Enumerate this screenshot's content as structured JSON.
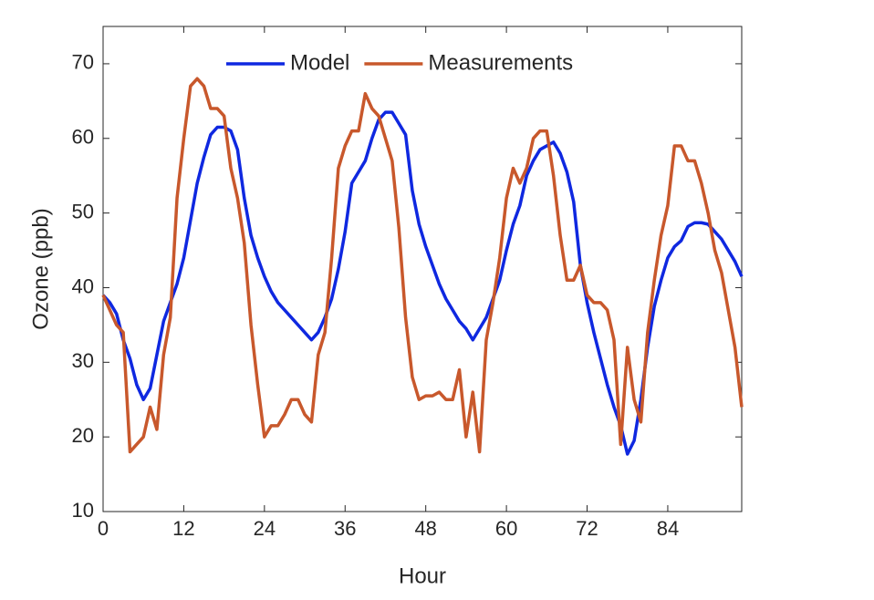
{
  "chart_data": {
    "type": "line",
    "xlabel": "Hour",
    "ylabel": "Ozone (ppb)",
    "x": [
      0,
      1,
      2,
      3,
      4,
      5,
      6,
      7,
      8,
      9,
      10,
      11,
      12,
      13,
      14,
      15,
      16,
      17,
      18,
      19,
      20,
      21,
      22,
      23,
      24,
      25,
      26,
      27,
      28,
      29,
      30,
      31,
      32,
      33,
      34,
      35,
      36,
      37,
      38,
      39,
      40,
      41,
      42,
      43,
      44,
      45,
      46,
      47,
      48,
      49,
      50,
      51,
      52,
      53,
      54,
      55,
      56,
      57,
      58,
      59,
      60,
      61,
      62,
      63,
      64,
      65,
      66,
      67,
      68,
      69,
      70,
      71,
      72,
      73,
      74,
      75,
      76,
      77,
      78,
      79,
      80,
      81,
      82,
      83,
      84,
      85,
      86,
      87,
      88,
      89,
      90,
      91,
      92,
      93,
      94,
      95
    ],
    "series": [
      {
        "name": "Model",
        "color": "#0f28e0",
        "values": [
          39,
          38,
          36.5,
          33,
          30.5,
          27,
          25,
          26.5,
          31,
          35.5,
          38,
          40.5,
          44,
          49,
          54,
          57.5,
          60.5,
          61.5,
          61.5,
          61,
          58.5,
          52,
          47,
          44,
          41.5,
          39.5,
          38,
          37,
          36,
          35,
          34,
          33,
          34,
          36,
          38.5,
          42.5,
          47.5,
          54,
          55.5,
          57,
          60,
          62.5,
          63.5,
          63.5,
          62,
          60.5,
          53,
          48.5,
          45.5,
          43,
          40.5,
          38.5,
          37,
          35.5,
          34.5,
          33,
          34.5,
          36,
          38.5,
          41,
          45,
          48.5,
          51,
          55,
          57,
          58.5,
          59,
          59.5,
          58,
          55.5,
          51.5,
          43,
          38,
          34,
          30.5,
          27,
          24,
          21.5,
          17.7,
          19.5,
          25,
          32,
          37.5,
          41,
          44,
          45.5,
          46.3,
          48.2,
          48.7,
          48.7,
          48.5,
          47.5,
          46.5,
          45,
          43.5,
          41.5
        ]
      },
      {
        "name": "Measurements",
        "color": "#c8582c",
        "values": [
          39,
          37,
          35,
          34,
          18,
          19,
          20,
          24,
          21,
          31,
          36,
          52,
          60,
          67,
          68,
          67,
          64,
          64,
          63,
          56,
          52,
          46,
          35,
          27,
          20,
          21.5,
          21.5,
          23,
          25,
          25,
          23,
          22,
          31,
          34,
          44,
          56,
          59,
          61,
          61,
          66,
          64,
          63,
          60,
          57,
          48,
          36,
          28,
          25,
          25.5,
          25.5,
          26,
          25,
          25,
          29,
          20,
          26,
          18,
          33,
          38,
          44,
          52,
          56,
          54,
          56,
          60,
          61,
          61,
          55,
          47,
          41,
          41,
          43,
          39,
          38,
          38,
          37,
          33,
          19,
          32,
          25,
          22,
          34,
          41,
          47,
          51,
          59,
          59,
          57,
          57,
          54,
          50,
          45,
          42,
          37,
          32,
          24
        ]
      }
    ],
    "xlim": [
      0,
      95
    ],
    "xticks": [
      0,
      12,
      24,
      36,
      48,
      60,
      72,
      84
    ],
    "ylim": [
      10,
      75
    ],
    "yticks": [
      10,
      20,
      30,
      40,
      50,
      60,
      70
    ],
    "legend": "top"
  }
}
